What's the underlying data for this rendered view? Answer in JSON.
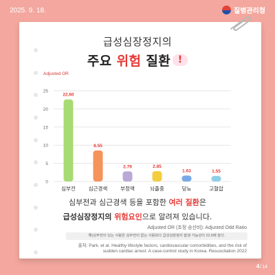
{
  "date": "2025. 9. 18.",
  "brand": {
    "name": "질병관리청",
    "logo": "korean-government-logo"
  },
  "title": {
    "line1": "급성심장정지의",
    "line2_prefix": "주요 ",
    "line2_accent": "위험",
    "line2_suffix": " 질환",
    "emoji": "!"
  },
  "chart_data": {
    "type": "bar",
    "ylabel": "Adjusted OR",
    "ylim": [
      0,
      25
    ],
    "yticks": [
      0,
      5,
      10,
      15,
      20,
      25
    ],
    "grid": true,
    "categories": [
      "심부전",
      "심근경색",
      "부정맥",
      "뇌졸중",
      "당뇨",
      "고혈압"
    ],
    "values": [
      22.6,
      8.55,
      2.79,
      2.85,
      1.63,
      1.55
    ],
    "value_labels": [
      "22.60",
      "8.55",
      "2.79",
      "2.85",
      "1.63",
      "1.55"
    ],
    "colors": [
      "#a8db73",
      "#f5935a",
      "#b9a9d6",
      "#f4cd3f",
      "#79a8e6",
      "#8fcfe5"
    ],
    "label_colors": [
      "#e53935",
      "#e53935",
      "#e53935",
      "#e53935",
      "#e53935",
      "#e53935"
    ]
  },
  "description": {
    "line1_prefix": "심부전과 심근경색 등을 포함한 ",
    "line1_accent": "여러 질환",
    "line1_suffix": "은",
    "line2_bold": "급성심장정지의 ",
    "line2_accent": "위험요인",
    "line2_suffix": "으로 알려져 있습니다."
  },
  "notes": {
    "adjusted": "Adjusted OR (조정 승산비): Adjusted Odd Ratio",
    "example": "예)심부전이 있는 사람은 심부전이 없는 사람보다 급성심장정지 발생 가능성이 22.6배 높다.",
    "source_line1": "출처: Park. et al. Healthy lifestyle factors, cardiovascular comorbidities, and the risk of",
    "source_line2": "sudden cardiac arrest: A case-control study in Korea. Resuscitation 2022"
  },
  "page": {
    "current": "4",
    "separator": "/",
    "total": "14"
  },
  "colors": {
    "background": "#f3a79e",
    "accent": "#e53935",
    "card": "#ffffff"
  }
}
